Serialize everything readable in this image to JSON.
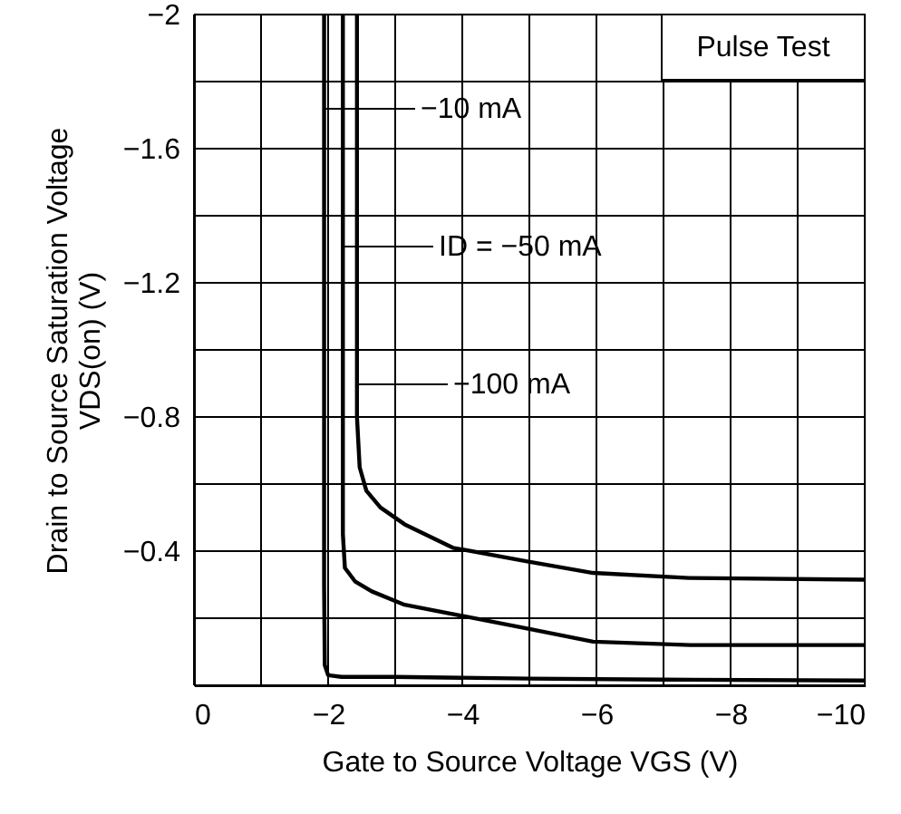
{
  "chart_data": {
    "type": "line",
    "xlabel": "Gate to Source Voltage  VGS  (V)",
    "ylabel": "Drain to Source Saturation Voltage\nVDS(on) (V)",
    "xlim": [
      0,
      -10
    ],
    "ylim": [
      0,
      -2
    ],
    "xticks": [
      0,
      {
        "value": -1,
        "label": null
      },
      -2,
      {
        "value": -3,
        "label": null
      },
      -4,
      {
        "value": -5,
        "label": null
      },
      -6,
      {
        "value": -7,
        "label": null
      },
      -8,
      {
        "value": -9,
        "label": null
      },
      -10
    ],
    "yticks": [
      {
        "value": 0,
        "label": null
      },
      {
        "value": -0.2,
        "label": null
      },
      -0.4,
      {
        "value": -0.6,
        "label": null
      },
      -0.8,
      {
        "value": -1.0,
        "label": null
      },
      -1.2,
      {
        "value": -1.4,
        "label": null
      },
      -1.6,
      {
        "value": -1.8,
        "label": null
      },
      -2
    ],
    "grid": true,
    "marker": "none",
    "line_style": "solid",
    "series": [
      {
        "color": "#000000",
        "x": [
          -1.94,
          -1.94,
          -1.95,
          -2.0,
          -2.2,
          -3.0,
          -5.0,
          -7.0,
          -10.0
        ],
        "values": [
          -2.0,
          -0.3,
          -0.06,
          -0.03,
          -0.025,
          -0.025,
          -0.02,
          -0.017,
          -0.014
        ]
      },
      {
        "color": "#000000",
        "x": [
          -2.22,
          -2.22,
          -2.25,
          -2.4,
          -2.65,
          -3.14,
          -4.05,
          -4.95,
          -5.95,
          -7.4,
          -10.0
        ],
        "values": [
          -2.0,
          -0.45,
          -0.35,
          -0.31,
          -0.28,
          -0.24,
          -0.205,
          -0.17,
          -0.13,
          -0.12,
          -0.12
        ]
      },
      {
        "color": "#000000",
        "x": [
          -2.43,
          -2.43,
          -2.47,
          -2.57,
          -2.78,
          -3.14,
          -3.86,
          -4.95,
          -5.95,
          -7.38,
          -10.0
        ],
        "values": [
          -2.0,
          -0.8,
          -0.65,
          -0.58,
          -0.53,
          -0.48,
          -0.41,
          -0.37,
          -0.335,
          -0.32,
          -0.315
        ]
      }
    ],
    "annotations": [
      "Pulse Test",
      "−10 mA",
      "ID = −50 mA",
      "−100 mA"
    ]
  }
}
